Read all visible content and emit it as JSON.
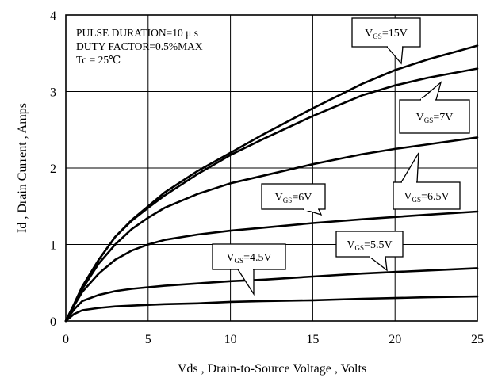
{
  "chart_data": {
    "type": "line",
    "xlabel": "Vds , Drain-to-Source Voltage , Volts",
    "ylabel": "Id , Drain Current , Amps",
    "xlim": [
      0,
      25
    ],
    "ylim": [
      0,
      4
    ],
    "xticks": [
      "0",
      "5",
      "10",
      "15",
      "20",
      "25"
    ],
    "yticks": [
      "0",
      "1",
      "2",
      "3",
      "4"
    ],
    "grid": true,
    "notes": [
      "PULSE DURATION=10 μ s",
      "DUTY FACTOR=0.5%MAX",
      "Tc = 25℃"
    ],
    "series": [
      {
        "name": "VGS=15V",
        "sub": "GS",
        "value": "=15V",
        "x": [
          0,
          0.5,
          1,
          2,
          3,
          4,
          5,
          6,
          8,
          10,
          12,
          15,
          18,
          20,
          22,
          25
        ],
        "y": [
          0,
          0.22,
          0.45,
          0.8,
          1.1,
          1.32,
          1.5,
          1.68,
          1.96,
          2.2,
          2.44,
          2.78,
          3.1,
          3.28,
          3.42,
          3.6
        ]
      },
      {
        "name": "VGS=7V",
        "sub": "GS",
        "value": "=7V",
        "x": [
          0,
          0.5,
          1,
          2,
          3,
          4,
          5,
          6,
          8,
          10,
          12,
          15,
          18,
          20,
          22,
          25
        ],
        "y": [
          0,
          0.22,
          0.45,
          0.8,
          1.1,
          1.31,
          1.48,
          1.64,
          1.92,
          2.17,
          2.38,
          2.68,
          2.95,
          3.08,
          3.18,
          3.3
        ]
      },
      {
        "name": "VGS=6.5V",
        "sub": "GS",
        "value": "=6.5V",
        "x": [
          0,
          0.5,
          1,
          2,
          3,
          4,
          5,
          6,
          8,
          10,
          12,
          15,
          18,
          20,
          22,
          25
        ],
        "y": [
          0,
          0.2,
          0.42,
          0.75,
          1.0,
          1.2,
          1.35,
          1.48,
          1.66,
          1.8,
          1.9,
          2.05,
          2.18,
          2.25,
          2.31,
          2.4
        ]
      },
      {
        "name": "VGS=6V",
        "sub": "GS",
        "value": "=6V",
        "x": [
          0,
          0.5,
          1,
          2,
          3,
          4,
          5,
          6,
          8,
          10,
          12,
          15,
          18,
          20,
          22,
          25
        ],
        "y": [
          0,
          0.2,
          0.38,
          0.62,
          0.8,
          0.92,
          1.0,
          1.06,
          1.13,
          1.18,
          1.22,
          1.28,
          1.33,
          1.36,
          1.39,
          1.43
        ]
      },
      {
        "name": "VGS=5.5V",
        "sub": "GS",
        "value": "=5.5V",
        "x": [
          0,
          0.5,
          1,
          2,
          3,
          4,
          5,
          6,
          8,
          10,
          12,
          15,
          18,
          20,
          22,
          25
        ],
        "y": [
          0,
          0.15,
          0.26,
          0.34,
          0.39,
          0.42,
          0.44,
          0.46,
          0.49,
          0.52,
          0.54,
          0.58,
          0.62,
          0.64,
          0.66,
          0.69
        ]
      },
      {
        "name": "VGS=4.5V",
        "sub": "GS",
        "value": "=4.5V",
        "x": [
          0,
          0.5,
          1,
          2,
          3,
          4,
          5,
          6,
          8,
          10,
          12,
          15,
          18,
          20,
          22,
          25
        ],
        "y": [
          0,
          0.09,
          0.14,
          0.17,
          0.19,
          0.2,
          0.21,
          0.22,
          0.23,
          0.25,
          0.26,
          0.27,
          0.29,
          0.3,
          0.31,
          0.32
        ]
      }
    ]
  }
}
